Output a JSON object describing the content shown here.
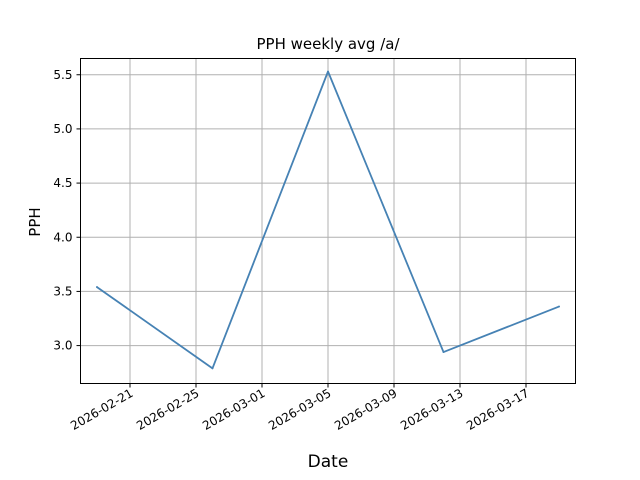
{
  "chart_data": {
    "type": "line",
    "title": "PPH weekly avg /a/",
    "xlabel": "Date",
    "ylabel": "PPH",
    "x_scale": "date",
    "ylim": [
      2.65,
      5.65
    ],
    "xlim": [
      "2026-02-18",
      "2026-03-20"
    ],
    "grid": true,
    "y_ticks": [
      3.0,
      3.5,
      4.0,
      4.5,
      5.0,
      5.5
    ],
    "x_ticks": [
      "2026-02-21",
      "2026-02-25",
      "2026-03-01",
      "2026-03-05",
      "2026-03-09",
      "2026-03-13",
      "2026-03-17"
    ],
    "series": [
      {
        "color": "#4682b4",
        "points": [
          {
            "x": "2026-02-19",
            "y": 3.54
          },
          {
            "x": "2026-02-26",
            "y": 2.79
          },
          {
            "x": "2026-03-05",
            "y": 5.53
          },
          {
            "x": "2026-03-12",
            "y": 2.94
          },
          {
            "x": "2026-03-19",
            "y": 3.36
          }
        ]
      }
    ]
  }
}
